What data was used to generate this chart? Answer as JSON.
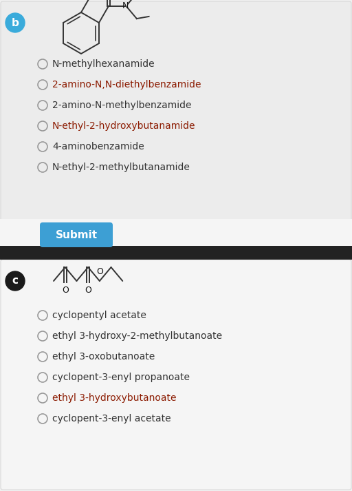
{
  "bg_top": "#f0f0f0",
  "bg_section_b": "#ececec",
  "bg_section_c": "#f5f5f5",
  "dark_bar_color": "#222222",
  "submit_btn_color": "#3d9fd4",
  "submit_btn_text": "Submit",
  "label_b_color": "#3aabdb",
  "label_c_color": "#1a1a1a",
  "section_b": {
    "label": "b",
    "options": [
      "N-methylhexanamide",
      "2-amino-N,N-diethylbenzamide",
      "2-amino-N-methylbenzamide",
      "N-ethyl-2-hydroxybutanamide",
      "4-aminobenzamide",
      "N-ethyl-2-methylbutanamide"
    ],
    "option_colors": [
      "#333333",
      "#8B1A00",
      "#333333",
      "#8B1A00",
      "#333333",
      "#333333"
    ]
  },
  "section_c": {
    "label": "c",
    "options": [
      "cyclopentyl acetate",
      "ethyl 3-hydroxy-2-methylbutanoate",
      "ethyl 3-oxobutanoate",
      "cyclopent-3-enyl propanoate",
      "ethyl 3-hydroxybutanoate",
      "cyclopent-3-enyl acetate"
    ],
    "option_colors": [
      "#333333",
      "#333333",
      "#333333",
      "#333333",
      "#8B1A00",
      "#333333"
    ]
  }
}
